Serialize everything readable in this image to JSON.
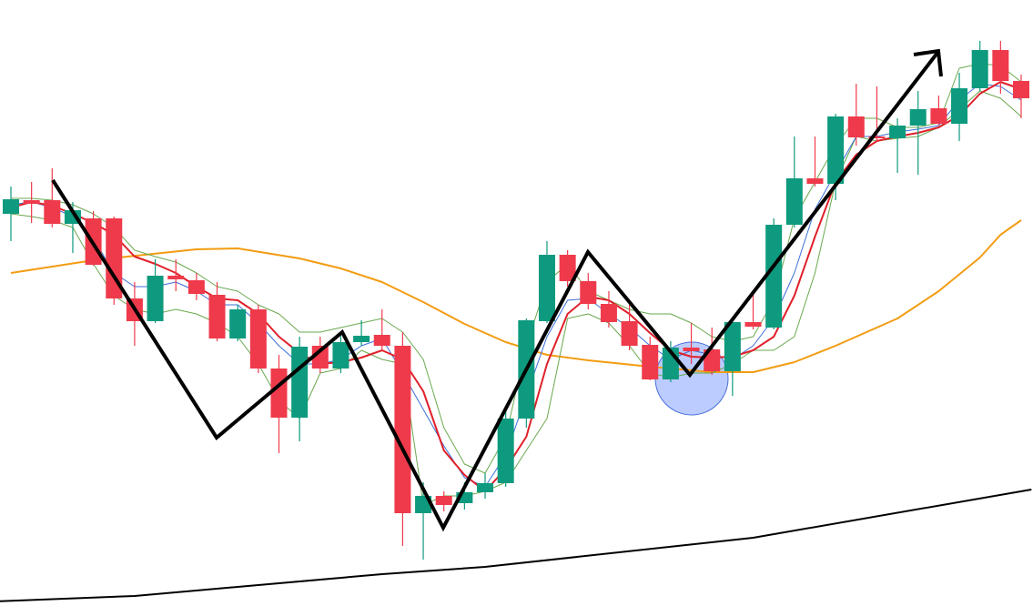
{
  "chart_data": {
    "type": "candlestick",
    "ylim": [
      0,
      666
    ],
    "up_color": "#0e9a7e",
    "down_color": "#ef3a4b",
    "open": [
      431,
      446,
      446,
      420,
      426,
      426,
      338,
      313,
      363,
      358,
      342,
      294,
      326,
      261,
      207,
      286,
      261,
      290,
      298,
      286,
      102,
      121,
      113,
      125,
      135,
      206,
      313,
      386,
      357,
      332,
      313,
      287,
      249,
      284,
      282,
      258,
      312,
      306,
      419,
      470,
      464,
      538,
      516,
      514,
      528,
      547,
      530,
      569,
      611,
      577
    ],
    "high": [
      461,
      466,
      481,
      444,
      434,
      428,
      356,
      381,
      381,
      366,
      356,
      331,
      331,
      276,
      296,
      296,
      301,
      314,
      326,
      301,
      136,
      126,
      136,
      146,
      216,
      316,
      401,
      391,
      366,
      346,
      331,
      296,
      291,
      311,
      306,
      316,
      346,
      426,
      516,
      516,
      541,
      574,
      571,
      536,
      566,
      561,
      586,
      621,
      621,
      584
    ],
    "low": [
      401,
      421,
      416,
      388,
      374,
      331,
      286,
      311,
      346,
      336,
      291,
      291,
      256,
      168,
      181,
      256,
      256,
      286,
      281,
      66,
      51,
      104,
      106,
      118,
      131,
      196,
      311,
      351,
      326,
      306,
      281,
      248,
      246,
      266,
      254,
      231,
      304,
      304,
      416,
      461,
      446,
      506,
      511,
      476,
      474,
      528,
      511,
      566,
      563,
      536
    ],
    "close": [
      447,
      442,
      420,
      435,
      375,
      338,
      313,
      363,
      359,
      343,
      294,
      326,
      261,
      207,
      285,
      261,
      290,
      297,
      286,
      102,
      121,
      111,
      125,
      135,
      206,
      314,
      386,
      357,
      332,
      312,
      286,
      249,
      284,
      280,
      258,
      312,
      307,
      419,
      470,
      464,
      538,
      515,
      514,
      528,
      546,
      530,
      569,
      611,
      577,
      558
    ],
    "overlays": [
      {
        "color": "#f39c12",
        "width": 2,
        "x": [
          0,
          4,
          9,
          11,
          14,
          16,
          18,
          20,
          22,
          24,
          26,
          28,
          31,
          34,
          36,
          38,
          40,
          43,
          45,
          47,
          48,
          49
        ],
        "values": [
          366,
          380,
          392,
          393,
          382,
          371,
          356,
          334,
          310,
          290,
          276,
          270,
          263,
          257,
          257,
          268,
          286,
          316,
          346,
          383,
          408,
          424
        ]
      },
      {
        "color": "#000000",
        "width": 2,
        "x": [
          -2,
          6,
          18,
          23,
          36,
          49.5
        ],
        "values": [
          4,
          11,
          35,
          43,
          75,
          128
        ]
      },
      {
        "color": "#6aa84f",
        "width": 1,
        "values": [
          448,
          448,
          446,
          441,
          431,
          416,
          391,
          384,
          378,
          366,
          351,
          346,
          331,
          321,
          301,
          301,
          306,
          311,
          316,
          301,
          271,
          196,
          156,
          146,
          186,
          286,
          356,
          376,
          346,
          336,
          326,
          321,
          321,
          311,
          296,
          291,
          296,
          336,
          426,
          466,
          506,
          536,
          536,
          526,
          526,
          531,
          591,
          596,
          594,
          576
        ]
      },
      {
        "color": "#6aa84f",
        "width": 1,
        "values": [
          431,
          428,
          424,
          416,
          376,
          341,
          326,
          321,
          326,
          321,
          311,
          296,
          266,
          226,
          206,
          256,
          261,
          281,
          271,
          266,
          111,
          121,
          121,
          126,
          136,
          171,
          206,
          316,
          321,
          311,
          286,
          256,
          251,
          256,
          256,
          266,
          281,
          281,
          296,
          366,
          466,
          516,
          511,
          514,
          516,
          526,
          546,
          566,
          558,
          538
        ]
      },
      {
        "color": "#3b6fd8",
        "width": 1,
        "values": [
          441,
          444,
          438,
          428,
          404,
          366,
          351,
          351,
          356,
          346,
          331,
          331,
          311,
          286,
          266,
          266,
          271,
          286,
          294,
          256,
          216,
          176,
          141,
          131,
          166,
          231,
          296,
          336,
          338,
          321,
          306,
          286,
          271,
          281,
          276,
          271,
          286,
          316,
          366,
          436,
          476,
          516,
          516,
          521,
          524,
          528,
          556,
          574,
          571,
          556
        ]
      },
      {
        "color": "#e0202a",
        "width": 2,
        "values": [
          438,
          444,
          440,
          431,
          421,
          408,
          384,
          376,
          366,
          351,
          338,
          336,
          321,
          296,
          278,
          266,
          268,
          273,
          281,
          271,
          236,
          171,
          144,
          126,
          151,
          186,
          266,
          321,
          340,
          336,
          321,
          300,
          281,
          274,
          273,
          274,
          281,
          296,
          341,
          406,
          466,
          496,
          511,
          516,
          520,
          526,
          539,
          563,
          576,
          568
        ]
      }
    ]
  }
}
